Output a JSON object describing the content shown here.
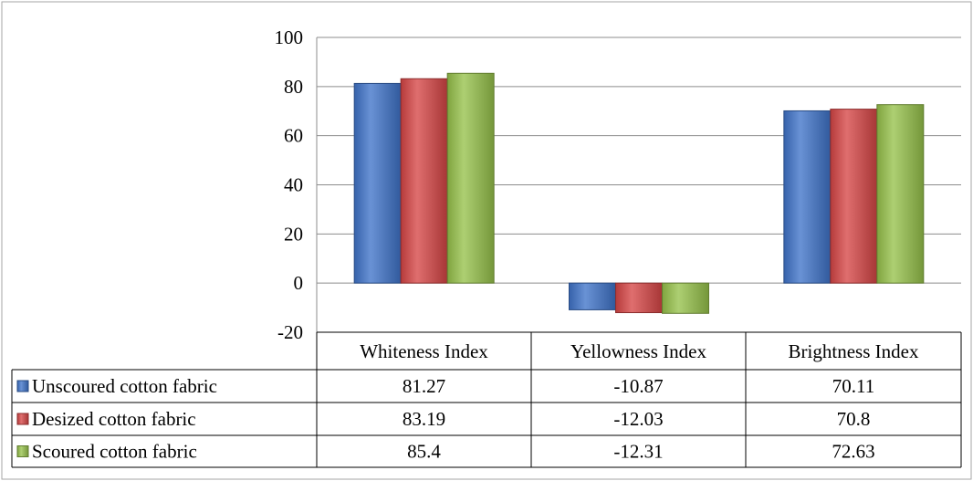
{
  "chart_data": {
    "type": "bar",
    "title": "",
    "xlabel": "",
    "ylabel": "",
    "ylim": [
      -20,
      100
    ],
    "y_ticks": [
      "100",
      "80",
      "60",
      "40",
      "20",
      "0",
      "-20"
    ],
    "grid": true,
    "legend": "data-table",
    "categories": [
      "Whiteness Index",
      "Yellowness Index",
      "Brightness Index"
    ],
    "series": [
      {
        "name": "Unscoured cotton fabric",
        "values": [
          81.27,
          -10.87,
          70.11
        ],
        "labels": [
          "81.27",
          "-10.87",
          "70.11"
        ],
        "color": "#3f73c9"
      },
      {
        "name": "Desized cotton fabric",
        "values": [
          83.19,
          -12.03,
          70.8
        ],
        "labels": [
          "83.19",
          "-12.03",
          "70.8"
        ],
        "color": "#d64545"
      },
      {
        "name": "Scoured cotton fabric",
        "values": [
          85.4,
          -12.31,
          72.63
        ],
        "labels": [
          "85.4",
          "-12.31",
          "72.63"
        ],
        "color": "#96c14a"
      }
    ]
  }
}
